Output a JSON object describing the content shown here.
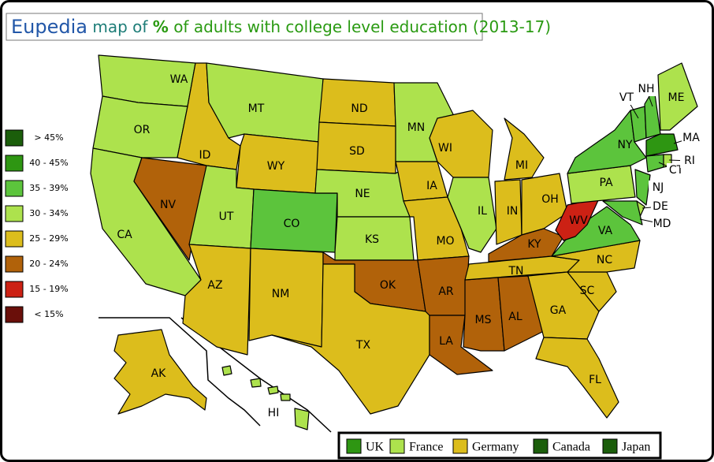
{
  "title": {
    "brand": "Eupedia",
    "prefix": "map of",
    "highlight": "%",
    "text": "of adults with college level education (2013-17)"
  },
  "legend": [
    {
      "label": "> 45%",
      "color": "#1b5e0b"
    },
    {
      "label": "40 - 45%",
      "color": "#2e9612"
    },
    {
      "label": "35 - 39%",
      "color": "#5cc43c"
    },
    {
      "label": "30 - 34%",
      "color": "#ade24d"
    },
    {
      "label": "25 - 29%",
      "color": "#dcbd1c"
    },
    {
      "label": "20 - 24%",
      "color": "#b1620a"
    },
    {
      "label": "15 - 19%",
      "color": "#cc2114"
    },
    {
      "label": "< 15%",
      "color": "#6a0f0a"
    }
  ],
  "states": [
    {
      "code": "WA",
      "color": "#ade24d"
    },
    {
      "code": "OR",
      "color": "#ade24d"
    },
    {
      "code": "CA",
      "color": "#ade24d"
    },
    {
      "code": "NV",
      "color": "#b1620a"
    },
    {
      "code": "ID",
      "color": "#dcbd1c"
    },
    {
      "code": "MT",
      "color": "#ade24d"
    },
    {
      "code": "WY",
      "color": "#dcbd1c"
    },
    {
      "code": "UT",
      "color": "#ade24d"
    },
    {
      "code": "CO",
      "color": "#5cc43c"
    },
    {
      "code": "AZ",
      "color": "#dcbd1c"
    },
    {
      "code": "NM",
      "color": "#dcbd1c"
    },
    {
      "code": "ND",
      "color": "#dcbd1c"
    },
    {
      "code": "SD",
      "color": "#dcbd1c"
    },
    {
      "code": "NE",
      "color": "#ade24d"
    },
    {
      "code": "KS",
      "color": "#ade24d"
    },
    {
      "code": "OK",
      "color": "#b1620a"
    },
    {
      "code": "TX",
      "color": "#dcbd1c"
    },
    {
      "code": "MN",
      "color": "#ade24d"
    },
    {
      "code": "IA",
      "color": "#dcbd1c"
    },
    {
      "code": "MO",
      "color": "#dcbd1c"
    },
    {
      "code": "AR",
      "color": "#b1620a"
    },
    {
      "code": "LA",
      "color": "#b1620a"
    },
    {
      "code": "MS",
      "color": "#b1620a"
    },
    {
      "code": "AL",
      "color": "#b1620a"
    },
    {
      "code": "WI",
      "color": "#dcbd1c"
    },
    {
      "code": "IL",
      "color": "#ade24d"
    },
    {
      "code": "IN",
      "color": "#dcbd1c"
    },
    {
      "code": "MI",
      "color": "#dcbd1c"
    },
    {
      "code": "OH",
      "color": "#dcbd1c"
    },
    {
      "code": "KY",
      "color": "#b1620a"
    },
    {
      "code": "TN",
      "color": "#dcbd1c"
    },
    {
      "code": "GA",
      "color": "#dcbd1c"
    },
    {
      "code": "FL",
      "color": "#dcbd1c"
    },
    {
      "code": "SC",
      "color": "#dcbd1c"
    },
    {
      "code": "NC",
      "color": "#dcbd1c"
    },
    {
      "code": "VA",
      "color": "#5cc43c"
    },
    {
      "code": "WV",
      "color": "#cc2114"
    },
    {
      "code": "PA",
      "color": "#ade24d"
    },
    {
      "code": "NY",
      "color": "#5cc43c"
    },
    {
      "code": "NJ",
      "color": "#5cc43c"
    },
    {
      "code": "DE",
      "color": "#ade24d"
    },
    {
      "code": "MD",
      "color": "#5cc43c"
    },
    {
      "code": "VT",
      "color": "#5cc43c"
    },
    {
      "code": "NH",
      "color": "#5cc43c"
    },
    {
      "code": "ME",
      "color": "#ade24d"
    },
    {
      "code": "MA",
      "color": "#2e9612"
    },
    {
      "code": "CT",
      "color": "#5cc43c"
    },
    {
      "code": "RI",
      "color": "#ade24d"
    },
    {
      "code": "AK",
      "color": "#dcbd1c"
    },
    {
      "code": "HI",
      "color": "#ade24d"
    }
  ],
  "comparison": [
    {
      "label": "UK",
      "color": "#2e9612"
    },
    {
      "label": "France",
      "color": "#ade24d"
    },
    {
      "label": "Germany",
      "color": "#dcbd1c"
    },
    {
      "label": "Canada",
      "color": "#1b5e0b"
    },
    {
      "label": "Japan",
      "color": "#1b5e0b"
    }
  ]
}
